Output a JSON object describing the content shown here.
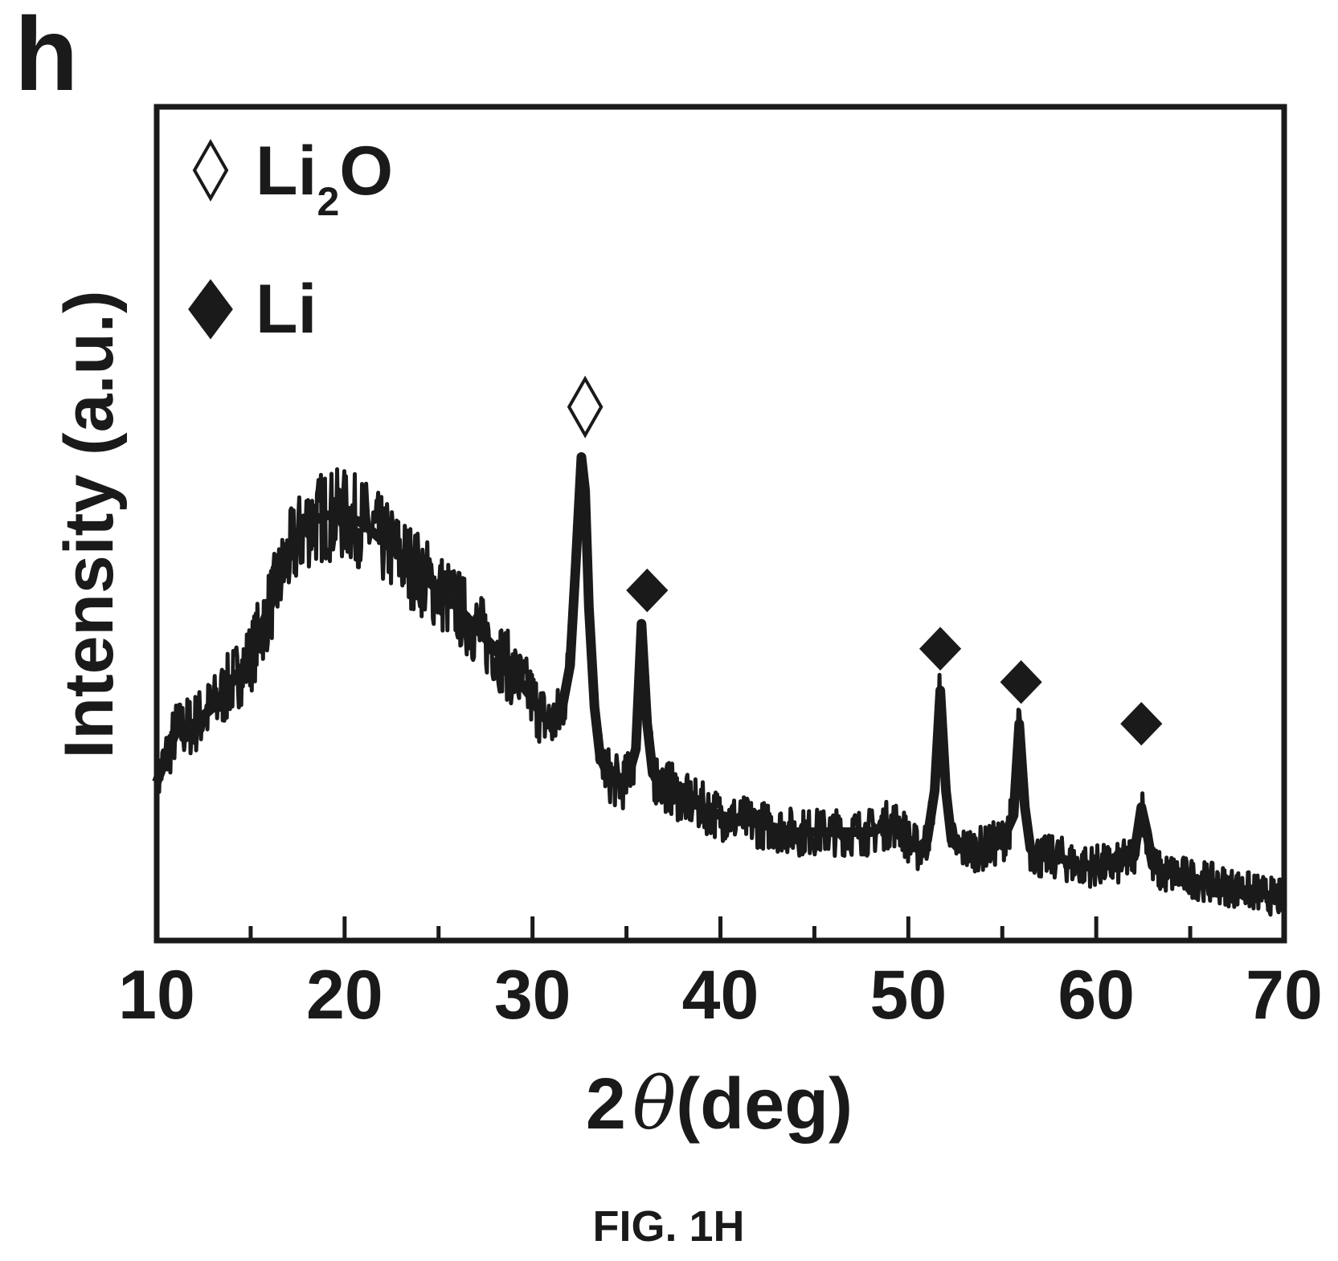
{
  "panel_label": "h",
  "figure_caption": "FIG. 1H",
  "chart_data": {
    "type": "line",
    "xlabel_prefix": "2",
    "xlabel_symbol": "θ",
    "xlabel_suffix": "(deg)",
    "ylabel": "Intensity (a.u.)",
    "xlim": [
      10,
      70
    ],
    "ylim": [
      0,
      100
    ],
    "grid": false,
    "legend_position": "top-left",
    "major_ticks": [
      10,
      20,
      30,
      40,
      50,
      60,
      70
    ],
    "tick_labels": [
      "10",
      "20",
      "30",
      "40",
      "50",
      "60",
      "70"
    ],
    "minor_ticks": [
      15,
      25,
      35,
      45,
      55,
      65
    ],
    "colors": {
      "line": "#1a1a1a",
      "axes": "#1a1a1a",
      "background": "#ffffff"
    },
    "legend": [
      {
        "marker": "open-diamond",
        "base": "Li",
        "sub": "2",
        "tail": "O"
      },
      {
        "marker": "filled-diamond",
        "base": "Li",
        "sub": "",
        "tail": ""
      }
    ],
    "series": [
      {
        "x": [
          10,
          11,
          12,
          13,
          14,
          15,
          16,
          17,
          18,
          19,
          20,
          21,
          22,
          24,
          26,
          28,
          29,
          30,
          30.5,
          31,
          31.5,
          32,
          32.3,
          32.6,
          32.8,
          33.0,
          33.3,
          33.6,
          34,
          34.5,
          35,
          35.5,
          35.8,
          36.1,
          36.4,
          36.8,
          37.5,
          38,
          39,
          40,
          42,
          44,
          46,
          48,
          49,
          49.5,
          50,
          50.5,
          51,
          51.4,
          51.7,
          52.0,
          52.3,
          52.7,
          53,
          54,
          55,
          55.6,
          55.9,
          56.2,
          56.5,
          57,
          58,
          59,
          60,
          61,
          62.0,
          62.4,
          62.7,
          63.0,
          63.5,
          64,
          66,
          68,
          70
        ],
        "y": [
          19,
          25,
          26,
          28,
          31,
          34,
          40,
          46,
          50,
          51,
          51,
          50,
          48,
          44,
          40,
          35,
          32,
          29,
          27,
          26,
          27,
          33,
          45,
          58,
          54,
          40,
          28,
          22,
          20,
          19,
          19,
          23,
          38,
          26,
          20,
          19,
          18,
          17,
          16,
          15,
          14,
          13,
          13,
          13,
          14,
          14,
          12,
          11,
          12,
          18,
          30,
          18,
          12,
          11,
          11,
          11,
          12,
          15,
          26,
          16,
          11,
          10,
          10,
          9,
          9,
          9,
          10,
          16,
          13,
          9,
          8,
          8,
          7,
          6,
          5
        ]
      }
    ],
    "peak_markers": [
      {
        "x": 32.8,
        "y": 64,
        "marker": "open-diamond",
        "phase": "Li2O"
      },
      {
        "x": 36.1,
        "y": 42,
        "marker": "filled-diamond",
        "phase": "Li"
      },
      {
        "x": 51.7,
        "y": 35,
        "marker": "filled-diamond",
        "phase": "Li"
      },
      {
        "x": 56.0,
        "y": 31,
        "marker": "filled-diamond",
        "phase": "Li"
      },
      {
        "x": 62.4,
        "y": 26,
        "marker": "filled-diamond",
        "phase": "Li"
      }
    ]
  }
}
